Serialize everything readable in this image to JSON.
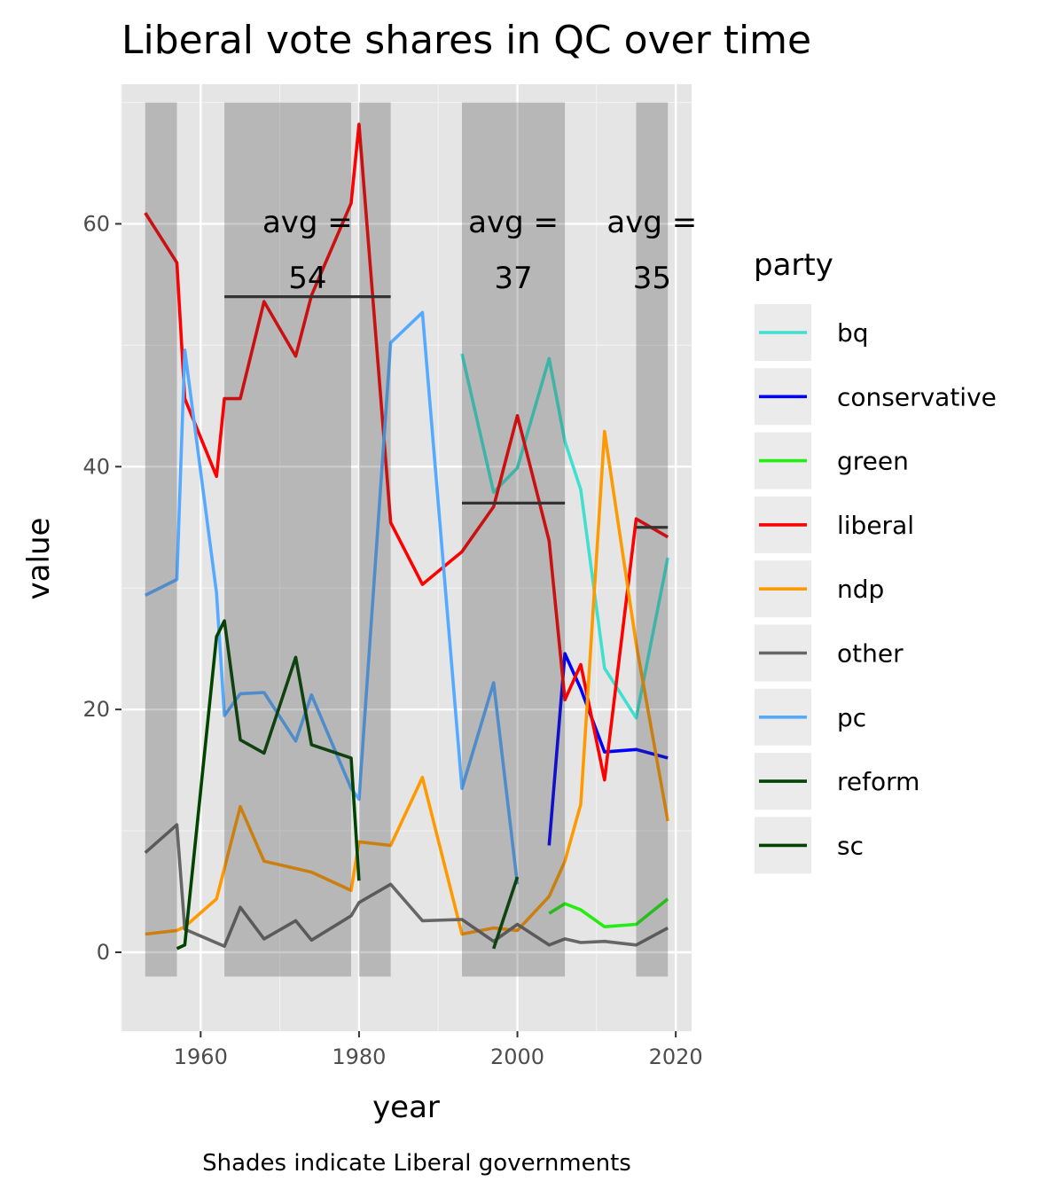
{
  "chart_data": {
    "type": "line",
    "title": "Liberal vote shares in QC over time",
    "xlabel": "year",
    "ylabel": "value",
    "caption": "Shades indicate Liberal governments",
    "legend_title": "party",
    "legend_position": "right",
    "xlim": [
      1950,
      2022
    ],
    "ylim": [
      -6.5,
      71.5
    ],
    "x_ticks": [
      1960,
      1980,
      2000,
      2020
    ],
    "y_ticks": [
      0,
      20,
      40,
      60
    ],
    "grid": true,
    "shaded_periods": [
      {
        "start": 1953,
        "end": 1957
      },
      {
        "start": 1963,
        "end": 1979
      },
      {
        "start": 1980,
        "end": 1984
      },
      {
        "start": 1993,
        "end": 2006
      },
      {
        "start": 2015,
        "end": 2019
      }
    ],
    "averages": [
      {
        "start": 1963,
        "end": 1984,
        "value": 54,
        "label_line1": "avg =",
        "label_line2": "54"
      },
      {
        "start": 1993,
        "end": 2006,
        "value": 37,
        "label_line1": "avg =",
        "label_line2": "37"
      },
      {
        "start": 2015,
        "end": 2019,
        "value": 35,
        "label_line1": "avg =",
        "label_line2": "35"
      }
    ],
    "series": [
      {
        "name": "bq",
        "color": "#40E0D0",
        "points": [
          [
            1993,
            49.3
          ],
          [
            1997,
            37.9
          ],
          [
            2000,
            39.9
          ],
          [
            2004,
            48.9
          ],
          [
            2006,
            42.1
          ],
          [
            2008,
            38.1
          ],
          [
            2011,
            23.4
          ],
          [
            2015,
            19.3
          ],
          [
            2019,
            32.5
          ]
        ]
      },
      {
        "name": "conservative",
        "color": "#0000FF",
        "points": [
          [
            2004,
            8.8
          ],
          [
            2006,
            24.6
          ],
          [
            2008,
            21.7
          ],
          [
            2011,
            16.5
          ],
          [
            2015,
            16.7
          ],
          [
            2019,
            16.0
          ]
        ]
      },
      {
        "name": "green",
        "color": "#22EE11",
        "points": [
          [
            2004,
            3.2
          ],
          [
            2006,
            4.0
          ],
          [
            2008,
            3.5
          ],
          [
            2011,
            2.1
          ],
          [
            2015,
            2.3
          ],
          [
            2019,
            4.4
          ]
        ]
      },
      {
        "name": "liberal",
        "color": "#FF0000",
        "points": [
          [
            1953,
            60.9
          ],
          [
            1957,
            56.8
          ],
          [
            1958,
            45.6
          ],
          [
            1962,
            39.2
          ],
          [
            1963,
            45.6
          ],
          [
            1965,
            45.6
          ],
          [
            1968,
            53.6
          ],
          [
            1972,
            49.1
          ],
          [
            1974,
            54.1
          ],
          [
            1979,
            61.7
          ],
          [
            1980,
            68.2
          ],
          [
            1984,
            35.4
          ],
          [
            1988,
            30.3
          ],
          [
            1993,
            33.0
          ],
          [
            1997,
            36.7
          ],
          [
            2000,
            44.2
          ],
          [
            2004,
            33.9
          ],
          [
            2006,
            20.8
          ],
          [
            2008,
            23.7
          ],
          [
            2011,
            14.2
          ],
          [
            2015,
            35.7
          ],
          [
            2019,
            34.2
          ]
        ]
      },
      {
        "name": "ndp",
        "color": "#FF9900",
        "points": [
          [
            1953,
            1.5
          ],
          [
            1957,
            1.8
          ],
          [
            1958,
            2.1
          ],
          [
            1962,
            4.4
          ],
          [
            1965,
            12.0
          ],
          [
            1968,
            7.5
          ],
          [
            1972,
            6.9
          ],
          [
            1974,
            6.6
          ],
          [
            1979,
            5.1
          ],
          [
            1980,
            9.1
          ],
          [
            1984,
            8.8
          ],
          [
            1988,
            14.4
          ],
          [
            1993,
            1.5
          ],
          [
            1997,
            2.0
          ],
          [
            2000,
            1.8
          ],
          [
            2004,
            4.6
          ],
          [
            2006,
            7.5
          ],
          [
            2008,
            12.2
          ],
          [
            2011,
            42.9
          ],
          [
            2015,
            25.4
          ],
          [
            2019,
            10.8
          ]
        ]
      },
      {
        "name": "other",
        "color": "#666666",
        "points": [
          [
            1953,
            8.2
          ],
          [
            1957,
            10.5
          ],
          [
            1958,
            1.9
          ],
          [
            1963,
            0.5
          ],
          [
            1965,
            3.7
          ],
          [
            1968,
            1.1
          ],
          [
            1972,
            2.6
          ],
          [
            1974,
            1.0
          ],
          [
            1979,
            3.0
          ],
          [
            1980,
            4.1
          ],
          [
            1984,
            5.6
          ],
          [
            1988,
            2.6
          ],
          [
            1993,
            2.7
          ],
          [
            1997,
            0.9
          ],
          [
            2000,
            2.3
          ],
          [
            2004,
            0.6
          ],
          [
            2006,
            1.1
          ],
          [
            2008,
            0.8
          ],
          [
            2011,
            0.9
          ],
          [
            2015,
            0.6
          ],
          [
            2019,
            2.0
          ]
        ]
      },
      {
        "name": "pc",
        "color": "#55AAFF",
        "points": [
          [
            1953,
            29.4
          ],
          [
            1957,
            30.7
          ],
          [
            1958,
            49.6
          ],
          [
            1962,
            29.6
          ],
          [
            1963,
            19.5
          ],
          [
            1965,
            21.3
          ],
          [
            1968,
            21.4
          ],
          [
            1972,
            17.4
          ],
          [
            1974,
            21.2
          ],
          [
            1979,
            13.5
          ],
          [
            1980,
            12.6
          ],
          [
            1984,
            50.2
          ],
          [
            1988,
            52.7
          ],
          [
            1993,
            13.5
          ],
          [
            1997,
            22.2
          ],
          [
            2000,
            5.6
          ]
        ]
      },
      {
        "name": "reform",
        "color": "#004400",
        "points": [
          [
            1997,
            0.3
          ],
          [
            2000,
            6.2
          ]
        ]
      },
      {
        "name": "sc",
        "color": "#004400",
        "points": [
          [
            1957,
            0.3
          ],
          [
            1958,
            0.6
          ],
          [
            1962,
            26.0
          ],
          [
            1963,
            27.3
          ],
          [
            1965,
            17.5
          ],
          [
            1968,
            16.4
          ],
          [
            1972,
            24.3
          ],
          [
            1974,
            17.1
          ],
          [
            1979,
            16.0
          ],
          [
            1980,
            5.9
          ]
        ]
      }
    ]
  }
}
